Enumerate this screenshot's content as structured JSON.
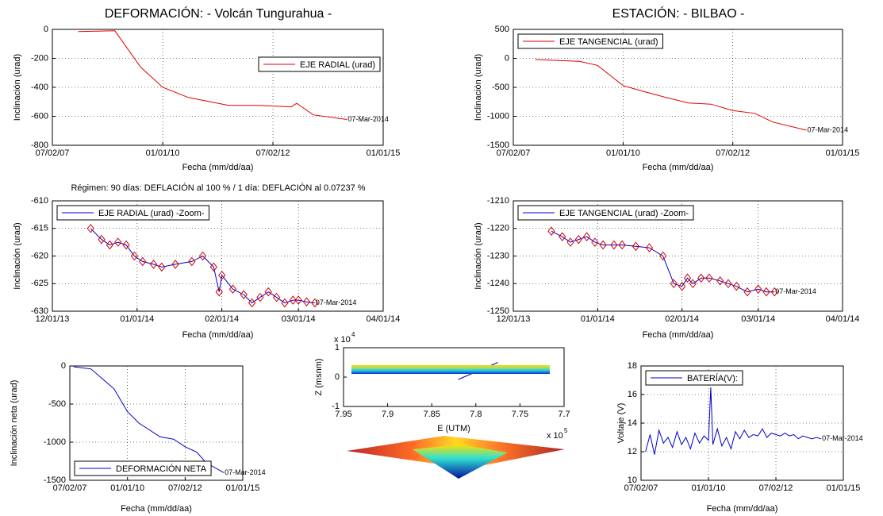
{
  "chart_data": [
    {
      "type": "line",
      "title": "DEFORMACIÓN: - Volcán Tungurahua -",
      "xlabel": "Fecha (mm/dd/aa)",
      "ylabel": "Inclinación (urad)",
      "xlim": [
        "2007-07-02",
        "2015-01-01"
      ],
      "xticks": [
        {
          "value": "2007-07-02",
          "label": "07/02/07"
        },
        {
          "value": "2010-01-01",
          "label": "01/01/10"
        },
        {
          "value": "2012-07-02",
          "label": "07/02/12"
        },
        {
          "value": "2015-01-01",
          "label": "01/01/15"
        }
      ],
      "ylim": [
        -800,
        0
      ],
      "yticks": [
        0,
        -200,
        -400,
        -600,
        -800
      ],
      "grid": true,
      "legend_loc": "upper right",
      "annotation": "07-Mar-2014",
      "series": [
        {
          "name": "EJE RADIAL (urad)",
          "color": "#e00000",
          "x": [
            "2008-02-01",
            "2008-12-01",
            "2009-07-01",
            "2010-01-01",
            "2010-08-01",
            "2011-07-01",
            "2012-03-01",
            "2012-12-01",
            "2013-01-15",
            "2013-06-01",
            "2014-03-07"
          ],
          "values": [
            -15,
            -10,
            -260,
            -400,
            -470,
            -525,
            -525,
            -535,
            -510,
            -590,
            -622
          ]
        }
      ]
    },
    {
      "type": "line",
      "title": "ESTACIÓN: - BILBAO -",
      "xlabel": "Fecha (mm/dd/aa)",
      "ylabel": "Inclinación (urad)",
      "xlim": [
        "2007-07-02",
        "2015-01-01"
      ],
      "xticks": [
        {
          "value": "2007-07-02",
          "label": "07/02/07"
        },
        {
          "value": "2010-01-01",
          "label": "01/01/10"
        },
        {
          "value": "2012-07-02",
          "label": "07/02/12"
        },
        {
          "value": "2015-01-01",
          "label": "01/01/15"
        }
      ],
      "ylim": [
        -1500,
        500
      ],
      "yticks": [
        500,
        0,
        -500,
        -1000,
        -1500
      ],
      "grid": true,
      "legend_loc": "upper left",
      "annotation": "07-Mar-2014",
      "series": [
        {
          "name": "EJE TANGENCIAL (urad)",
          "color": "#e00000",
          "x": [
            "2008-01-01",
            "2009-01-01",
            "2009-06-01",
            "2010-01-01",
            "2010-06-01",
            "2011-01-01",
            "2011-07-01",
            "2012-01-01",
            "2012-07-01",
            "2013-01-01",
            "2013-06-01",
            "2014-03-07"
          ],
          "values": [
            -20,
            -50,
            -120,
            -470,
            -560,
            -680,
            -770,
            -790,
            -900,
            -950,
            -1100,
            -1240
          ]
        }
      ]
    },
    {
      "type": "line",
      "title": "Régimen: 90 días: DEFLACIÓN al 100 % / 1 día: DEFLACIÓN al 0.07237 %",
      "xlabel": "Fecha (mm/dd/aa)",
      "ylabel": "Inclinación (urad)",
      "xlim": [
        "2013-12-01",
        "2014-04-01"
      ],
      "xticks": [
        {
          "value": "2013-12-01",
          "label": "12/01/13"
        },
        {
          "value": "2014-01-01",
          "label": "01/01/14"
        },
        {
          "value": "2014-02-01",
          "label": "02/01/14"
        },
        {
          "value": "2014-03-01",
          "label": "03/01/14"
        },
        {
          "value": "2014-04-01",
          "label": "04/01/14"
        }
      ],
      "ylim": [
        -630,
        -610
      ],
      "yticks": [
        -610,
        -615,
        -620,
        -625,
        -630
      ],
      "grid": true,
      "legend_loc": "upper left",
      "annotation": "07-Mar-2014",
      "series": [
        {
          "name": "EJE RADIAL (urad) -Zoom-",
          "color": "#0000cc",
          "marker": "diamond",
          "marker_color": "#d00000",
          "x": [
            "2013-12-15",
            "2013-12-19",
            "2013-12-22",
            "2013-12-25",
            "2013-12-28",
            "2013-12-31",
            "2014-01-03",
            "2014-01-07",
            "2014-01-10",
            "2014-01-15",
            "2014-01-21",
            "2014-01-25",
            "2014-01-29",
            "2014-01-31",
            "2014-02-01",
            "2014-02-05",
            "2014-02-09",
            "2014-02-12",
            "2014-02-15",
            "2014-02-18",
            "2014-02-21",
            "2014-02-24",
            "2014-02-27",
            "2014-03-01",
            "2014-03-04",
            "2014-03-07"
          ],
          "values": [
            -615,
            -617,
            -618,
            -617.5,
            -618,
            -620,
            -621,
            -621.5,
            -622,
            -621.5,
            -621,
            -620,
            -622,
            -626.5,
            -623.5,
            -626,
            -627,
            -628.5,
            -627.5,
            -626.5,
            -627.5,
            -628.5,
            -628,
            -628,
            -628.3,
            -628.5
          ]
        }
      ]
    },
    {
      "type": "line",
      "xlabel": "Fecha (mm/dd/aa)",
      "ylabel": "Inclinación (urad)",
      "xlim": [
        "2013-12-01",
        "2014-04-01"
      ],
      "xticks": [
        {
          "value": "2013-12-01",
          "label": "12/01/13"
        },
        {
          "value": "2014-01-01",
          "label": "01/01/14"
        },
        {
          "value": "2014-02-01",
          "label": "02/01/14"
        },
        {
          "value": "2014-03-01",
          "label": "03/01/14"
        },
        {
          "value": "2014-04-01",
          "label": "04/01/14"
        }
      ],
      "ylim": [
        -1250,
        -1210
      ],
      "yticks": [
        -1210,
        -1220,
        -1230,
        -1240,
        -1250
      ],
      "grid": true,
      "legend_loc": "upper left",
      "annotation": "07-Mar-2014",
      "series": [
        {
          "name": "EJE TANGENCIAL (urad) -Zoom-",
          "color": "#0000cc",
          "marker": "diamond",
          "marker_color": "#d00000",
          "x": [
            "2013-12-15",
            "2013-12-19",
            "2013-12-22",
            "2013-12-25",
            "2013-12-28",
            "2013-12-31",
            "2014-01-03",
            "2014-01-07",
            "2014-01-10",
            "2014-01-15",
            "2014-01-20",
            "2014-01-25",
            "2014-01-29",
            "2014-02-01",
            "2014-02-03",
            "2014-02-05",
            "2014-02-08",
            "2014-02-11",
            "2014-02-15",
            "2014-02-18",
            "2014-02-21",
            "2014-02-25",
            "2014-03-01",
            "2014-03-04",
            "2014-03-07"
          ],
          "values": [
            -1221,
            -1223,
            -1225,
            -1224,
            -1223,
            -1225,
            -1226,
            -1226,
            -1226,
            -1226.5,
            -1227,
            -1230,
            -1240,
            -1241,
            -1238,
            -1240,
            -1238,
            -1238,
            -1239,
            -1240,
            -1241,
            -1243,
            -1242,
            -1243,
            -1243
          ]
        }
      ]
    },
    {
      "type": "line",
      "xlabel": "Fecha (mm/dd/aa)",
      "ylabel": "Inclinación neta (urad)",
      "xlim": [
        "2007-07-02",
        "2015-01-01"
      ],
      "xticks": [
        {
          "value": "2007-07-02",
          "label": "07/02/07"
        },
        {
          "value": "2010-01-01",
          "label": "01/01/10"
        },
        {
          "value": "2012-07-02",
          "label": "07/02/12"
        },
        {
          "value": "2015-01-01",
          "label": "01/01/15"
        }
      ],
      "ylim": [
        -1500,
        0
      ],
      "yticks": [
        0,
        -500,
        -1000,
        -1500
      ],
      "grid": true,
      "legend_loc": "lower left",
      "annotation": "07-Mar-2014",
      "series": [
        {
          "name": "DEFORMACIÓN NETA",
          "color": "#0000cc",
          "x": [
            "2007-09-01",
            "2008-06-01",
            "2009-06-01",
            "2010-01-01",
            "2010-07-01",
            "2011-06-01",
            "2012-01-01",
            "2012-07-01",
            "2013-01-01",
            "2013-06-01",
            "2014-03-07"
          ],
          "values": [
            -10,
            -40,
            -300,
            -600,
            -750,
            -930,
            -960,
            -1060,
            -1130,
            -1270,
            -1400
          ]
        }
      ]
    },
    {
      "type": "line",
      "xlabel": "E (UTM)",
      "ylabel": "Z (msnm)",
      "xlim": [
        795000,
        770000
      ],
      "xticks": [
        {
          "value": 795000,
          "label": "7.95"
        },
        {
          "value": 790000,
          "label": "7.9"
        },
        {
          "value": 785000,
          "label": "7.85"
        },
        {
          "value": 780000,
          "label": "7.8"
        },
        {
          "value": 775000,
          "label": "7.75"
        },
        {
          "value": 770000,
          "label": "7.7"
        }
      ],
      "ylim": [
        -10000,
        10000
      ],
      "yticks": [
        {
          "value": 10000,
          "label": "1"
        },
        {
          "value": 0,
          "label": "0"
        },
        {
          "value": -10000,
          "label": "-1"
        }
      ],
      "grid": false,
      "y_multiplier": "x 10",
      "y_exponent": "4",
      "x_multiplier": "x 10",
      "x_exponent": "5",
      "series": [
        {
          "color": "#0000cc",
          "x": [
            782000,
            777500
          ],
          "values": [
            -800,
            5000
          ]
        }
      ]
    },
    {
      "type": "line",
      "xlabel": "Fecha (mm/dd/aa)",
      "ylabel": "Voltaje (V)",
      "xlim": [
        "2007-07-02",
        "2015-01-01"
      ],
      "xticks": [
        {
          "value": "2007-07-02",
          "label": "07/02/07"
        },
        {
          "value": "2010-01-01",
          "label": "01/01/10"
        },
        {
          "value": "2012-07-02",
          "label": "07/02/12"
        },
        {
          "value": "2015-01-01",
          "label": "01/01/15"
        }
      ],
      "ylim": [
        10,
        18
      ],
      "yticks": [
        10,
        12,
        14,
        16,
        18
      ],
      "grid": true,
      "legend_loc": "upper left",
      "annotation": "07-Mar-2014",
      "series": [
        {
          "name": "BATERÍA(V):",
          "color": "#0000cc",
          "x": [
            "2007-09-01",
            "2007-11-01",
            "2008-01-01",
            "2008-03-01",
            "2008-05-01",
            "2008-07-01",
            "2008-09-01",
            "2008-11-01",
            "2009-01-01",
            "2009-03-01",
            "2009-05-01",
            "2009-07-01",
            "2009-09-01",
            "2009-11-01",
            "2010-01-01",
            "2010-02-01",
            "2010-03-01",
            "2010-05-01",
            "2010-07-01",
            "2010-09-01",
            "2010-11-01",
            "2011-01-01",
            "2011-03-01",
            "2011-05-01",
            "2011-07-01",
            "2011-09-01",
            "2011-11-01",
            "2012-01-01",
            "2012-03-01",
            "2012-05-01",
            "2012-07-01",
            "2012-09-01",
            "2012-11-01",
            "2013-01-01",
            "2013-03-01",
            "2013-05-01",
            "2013-07-01",
            "2013-09-01",
            "2013-11-01",
            "2014-01-01",
            "2014-03-07"
          ],
          "values": [
            12.0,
            13.2,
            11.8,
            13.5,
            12.6,
            13.0,
            12.3,
            13.4,
            12.5,
            13.0,
            12.2,
            13.3,
            12.6,
            13.1,
            12.8,
            16.5,
            12.5,
            13.6,
            12.4,
            13.0,
            12.2,
            13.4,
            12.9,
            13.5,
            13.0,
            13.2,
            13.1,
            13.6,
            13.0,
            13.3,
            13.2,
            13.1,
            13.3,
            13.1,
            13.2,
            12.9,
            13.1,
            13.0,
            12.9,
            13.0,
            12.9
          ]
        }
      ]
    }
  ]
}
